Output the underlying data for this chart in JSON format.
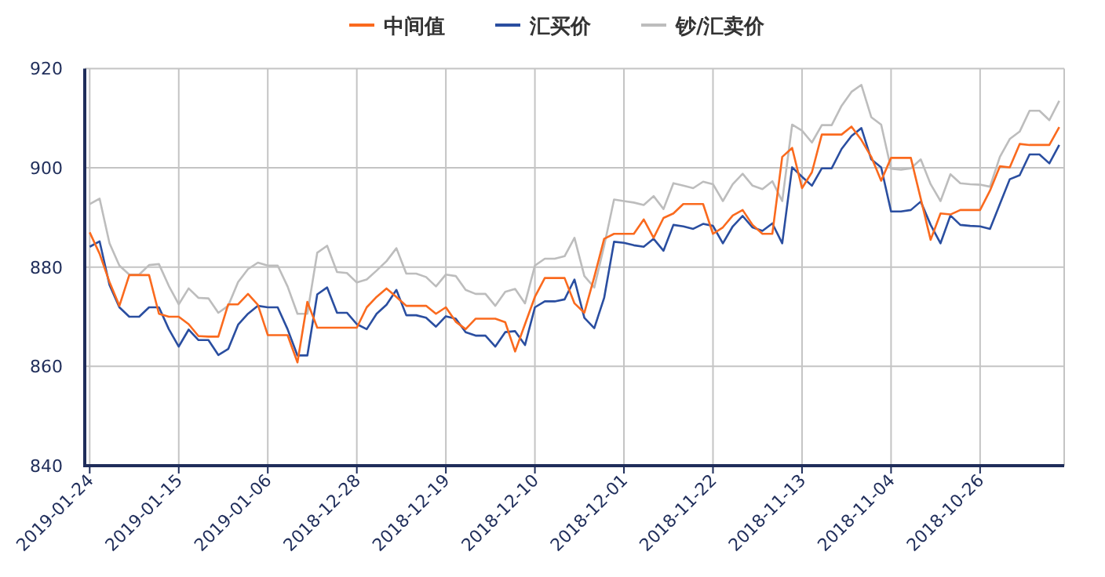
{
  "chart_data": {
    "type": "line",
    "categories": [
      "2019-01-24",
      null,
      null,
      null,
      null,
      null,
      null,
      null,
      null,
      "2019-01-15",
      null,
      null,
      null,
      null,
      null,
      null,
      null,
      null,
      "2019-01-06",
      null,
      null,
      null,
      null,
      null,
      null,
      null,
      null,
      "2018-12-28",
      null,
      null,
      null,
      null,
      null,
      null,
      null,
      null,
      "2018-12-19",
      null,
      null,
      null,
      null,
      null,
      null,
      null,
      null,
      "2018-12-10",
      null,
      null,
      null,
      null,
      null,
      null,
      null,
      null,
      "2018-12-01",
      null,
      null,
      null,
      null,
      null,
      null,
      null,
      null,
      "2018-11-22",
      null,
      null,
      null,
      null,
      null,
      null,
      null,
      null,
      "2018-11-13",
      null,
      null,
      null,
      null,
      null,
      null,
      null,
      null,
      "2018-11-04",
      null,
      null,
      null,
      null,
      null,
      null,
      null,
      null,
      "2018-10-26",
      null,
      null,
      null,
      null,
      null,
      null,
      null,
      null
    ],
    "series": [
      {
        "name": "中间值",
        "color": "#fa6a1e",
        "values": [
          887.0,
          882.7,
          877.0,
          872.2,
          878.4,
          878.4,
          878.4,
          870.6,
          870.0,
          870.0,
          868.5,
          866.1,
          866.0,
          866.0,
          872.5,
          872.5,
          874.6,
          872.4,
          866.3,
          866.3,
          866.3,
          860.8,
          873.0,
          867.8,
          867.8,
          867.8,
          867.8,
          867.8,
          871.9,
          874.0,
          875.7,
          874.0,
          872.2,
          872.2,
          872.2,
          870.6,
          871.9,
          869.0,
          867.5,
          869.6,
          869.6,
          869.6,
          868.9,
          863.0,
          868.5,
          874.0,
          877.8,
          877.8,
          877.8,
          872.7,
          870.8,
          878.0,
          885.7,
          886.7,
          886.7,
          886.7,
          889.6,
          885.9,
          889.9,
          890.8,
          892.7,
          892.7,
          892.7,
          886.7,
          888.0,
          890.4,
          891.5,
          888.5,
          886.7,
          886.7,
          902.2,
          904.0,
          895.9,
          899.1,
          906.7,
          906.7,
          906.7,
          908.3,
          905.6,
          902.2,
          897.4,
          902.0,
          902.0,
          902.0,
          893.8,
          885.5,
          890.8,
          890.6,
          891.5,
          891.5,
          891.5,
          895.4,
          900.3,
          900.1,
          904.8,
          904.6,
          904.6,
          904.6,
          908.2
        ]
      },
      {
        "name": "汇买价",
        "color": "#2a4ea0",
        "values": [
          884.1,
          885.2,
          876.4,
          871.9,
          870.0,
          870.0,
          871.9,
          871.9,
          867.5,
          864.0,
          867.4,
          865.3,
          865.3,
          862.3,
          863.5,
          868.4,
          870.6,
          872.2,
          871.9,
          871.9,
          867.5,
          862.2,
          862.2,
          874.5,
          875.9,
          870.8,
          870.8,
          868.5,
          867.5,
          870.6,
          872.4,
          875.4,
          870.3,
          870.3,
          869.8,
          868.0,
          870.1,
          869.6,
          866.9,
          866.2,
          866.2,
          864.0,
          866.9,
          867.1,
          864.3,
          871.9,
          873.1,
          873.1,
          873.5,
          877.5,
          869.8,
          867.7,
          873.8,
          885.1,
          884.9,
          884.4,
          884.1,
          885.7,
          883.3,
          888.5,
          888.2,
          887.7,
          888.7,
          888.3,
          884.8,
          888.2,
          890.3,
          888.0,
          887.3,
          888.8,
          884.8,
          900.1,
          898.2,
          896.4,
          899.9,
          899.9,
          903.8,
          906.4,
          908.0,
          901.7,
          900.1,
          891.2,
          891.2,
          891.5,
          893.2,
          888.5,
          884.8,
          890.4,
          888.5,
          888.3,
          888.2,
          887.7,
          892.7,
          897.7,
          898.5,
          902.7,
          902.7,
          900.9,
          904.6
        ]
      },
      {
        "name": "钞/汇卖价",
        "color": "#bdbdbd",
        "values": [
          892.7,
          893.8,
          884.8,
          880.3,
          878.5,
          878.5,
          880.4,
          880.6,
          876.2,
          872.5,
          875.7,
          873.8,
          873.7,
          870.8,
          872.2,
          877.0,
          879.6,
          880.9,
          880.3,
          880.3,
          876.1,
          870.6,
          870.6,
          882.9,
          884.3,
          879.0,
          878.8,
          876.9,
          877.5,
          879.3,
          881.2,
          883.8,
          878.7,
          878.7,
          878.0,
          876.1,
          878.5,
          878.2,
          875.4,
          874.6,
          874.6,
          872.2,
          875.0,
          875.6,
          872.7,
          880.3,
          881.7,
          881.7,
          882.2,
          885.9,
          878.2,
          875.9,
          884.3,
          893.6,
          893.3,
          893.0,
          892.5,
          894.3,
          891.7,
          896.9,
          896.4,
          895.9,
          897.2,
          896.7,
          893.3,
          896.7,
          898.8,
          896.4,
          895.7,
          897.3,
          893.3,
          908.7,
          907.5,
          905.1,
          908.6,
          908.6,
          912.5,
          915.3,
          916.7,
          910.2,
          908.7,
          899.8,
          899.6,
          899.9,
          901.7,
          896.7,
          893.3,
          898.7,
          896.9,
          896.7,
          896.6,
          896.2,
          902.2,
          905.8,
          907.3,
          911.5,
          911.5,
          909.6,
          913.5
        ]
      }
    ],
    "ylim": [
      840,
      920
    ],
    "yticks": [
      840,
      860,
      880,
      900,
      920
    ],
    "grid": true,
    "legend": "top"
  }
}
